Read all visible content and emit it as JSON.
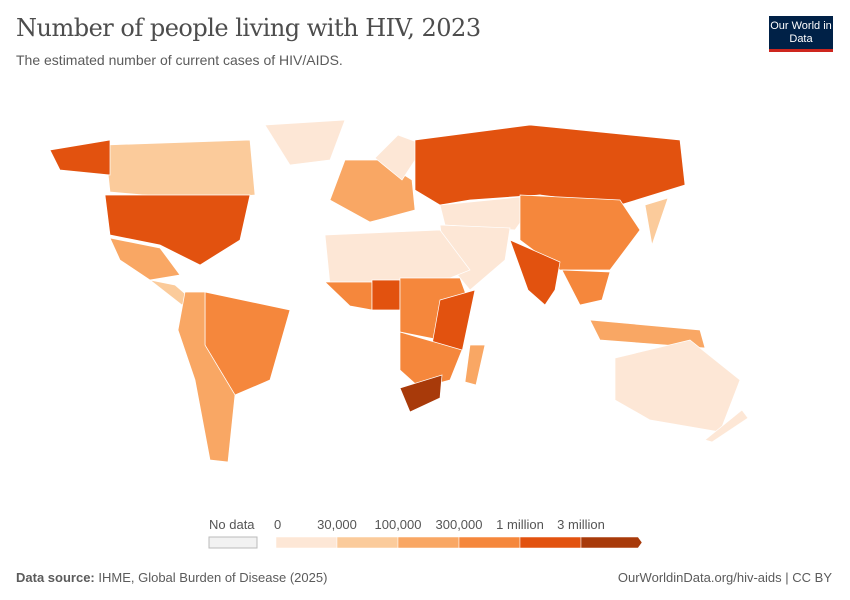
{
  "header": {
    "title": "Number of people living with HIV, 2023",
    "subtitle": "The estimated number of current cases of HIV/AIDS.",
    "logo": "Our World in Data"
  },
  "legend": {
    "no_data_label": "No data",
    "bins": [
      {
        "label": "0",
        "color": "#fde7d6"
      },
      {
        "label": "30,000",
        "color": "#fbcb9b"
      },
      {
        "label": "100,000",
        "color": "#f9a764"
      },
      {
        "label": "300,000",
        "color": "#f5873c"
      },
      {
        "label": "1 million",
        "color": "#e2520f"
      },
      {
        "label": "3 million",
        "color": "#a83a0a"
      }
    ]
  },
  "chart_data": {
    "type": "choropleth",
    "title": "Number of people living with HIV, 2023",
    "bin_edges": [
      0,
      30000,
      100000,
      300000,
      1000000,
      3000000
    ],
    "regions": [
      {
        "name": "Canada",
        "bin": 1
      },
      {
        "name": "United States",
        "bin": 4
      },
      {
        "name": "Alaska (US)",
        "bin": 4
      },
      {
        "name": "Greenland",
        "bin": 0
      },
      {
        "name": "Mexico",
        "bin": 2
      },
      {
        "name": "Central America",
        "bin": 1
      },
      {
        "name": "Brazil",
        "bin": 3
      },
      {
        "name": "Rest of South America",
        "bin": 2
      },
      {
        "name": "Europe",
        "bin": 2
      },
      {
        "name": "Scandinavia",
        "bin": 0
      },
      {
        "name": "Russia",
        "bin": 4
      },
      {
        "name": "Central Asia",
        "bin": 0
      },
      {
        "name": "China",
        "bin": 3
      },
      {
        "name": "India",
        "bin": 4
      },
      {
        "name": "Middle East",
        "bin": 0
      },
      {
        "name": "Southeast Asia",
        "bin": 3
      },
      {
        "name": "Indonesia",
        "bin": 2
      },
      {
        "name": "Australia",
        "bin": 0
      },
      {
        "name": "Japan",
        "bin": 1
      },
      {
        "name": "North Africa",
        "bin": 0
      },
      {
        "name": "West Africa",
        "bin": 3
      },
      {
        "name": "Nigeria",
        "bin": 4
      },
      {
        "name": "Central Africa",
        "bin": 3
      },
      {
        "name": "East Africa",
        "bin": 4
      },
      {
        "name": "Southern Africa",
        "bin": 3
      },
      {
        "name": "South Africa",
        "bin": 5
      },
      {
        "name": "Madagascar",
        "bin": 2
      },
      {
        "name": "New Zealand",
        "bin": 0
      }
    ]
  },
  "footer": {
    "source_label": "Data source:",
    "source": "IHME, Global Burden of Disease (2025)",
    "link": "OurWorldinData.org/hiv-aids | CC BY"
  }
}
